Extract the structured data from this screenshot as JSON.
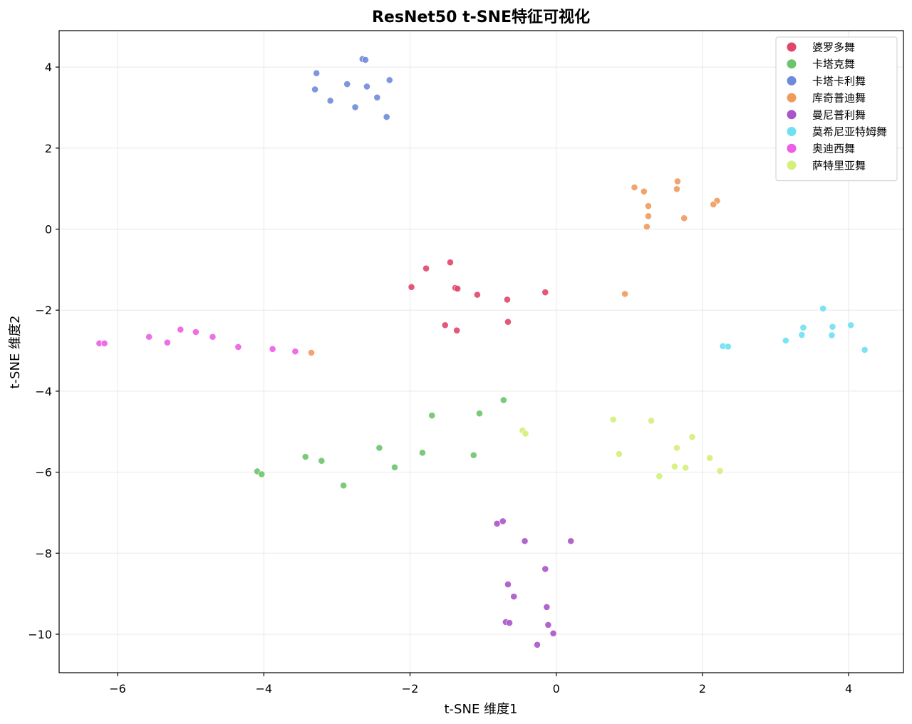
{
  "chart_data": {
    "type": "scatter",
    "title": "ResNet50 t-SNE特征可视化",
    "xlabel": "t-SNE 维度1",
    "ylabel": "t-SNE 维度2",
    "xlim": [
      -6.8,
      4.75
    ],
    "ylim": [
      -10.95,
      4.9
    ],
    "xticks": [
      -6,
      -4,
      -2,
      0,
      2,
      4
    ],
    "yticks": [
      4,
      2,
      0,
      -2,
      -4,
      -6,
      -8,
      -10
    ],
    "grid": true,
    "legend_position": "top-right",
    "series": [
      {
        "name": "婆罗多舞",
        "color": "#e0466a",
        "points": [
          [
            -1.45,
            -0.82
          ],
          [
            -1.78,
            -0.97
          ],
          [
            -1.98,
            -1.43
          ],
          [
            -1.38,
            -1.45
          ],
          [
            -1.35,
            -1.47
          ],
          [
            -1.08,
            -1.62
          ],
          [
            -0.67,
            -1.74
          ],
          [
            -0.15,
            -1.56
          ],
          [
            -1.52,
            -2.37
          ],
          [
            -1.36,
            -2.5
          ],
          [
            -0.66,
            -2.29
          ]
        ]
      },
      {
        "name": "卡塔克舞",
        "color": "#6cc46c",
        "points": [
          [
            -0.72,
            -4.22
          ],
          [
            -1.7,
            -4.6
          ],
          [
            -1.05,
            -4.55
          ],
          [
            -2.42,
            -5.4
          ],
          [
            -1.83,
            -5.52
          ],
          [
            -1.13,
            -5.58
          ],
          [
            -3.43,
            -5.62
          ],
          [
            -3.21,
            -5.72
          ],
          [
            -2.21,
            -5.88
          ],
          [
            -4.09,
            -5.98
          ],
          [
            -4.03,
            -6.05
          ],
          [
            -2.91,
            -6.33
          ]
        ]
      },
      {
        "name": "卡塔卡利舞",
        "color": "#7089dc",
        "points": [
          [
            -2.65,
            4.2
          ],
          [
            -2.61,
            4.18
          ],
          [
            -3.28,
            3.85
          ],
          [
            -2.28,
            3.68
          ],
          [
            -2.86,
            3.58
          ],
          [
            -2.59,
            3.52
          ],
          [
            -3.3,
            3.45
          ],
          [
            -2.45,
            3.25
          ],
          [
            -3.09,
            3.17
          ],
          [
            -2.75,
            3.01
          ],
          [
            -2.32,
            2.77
          ]
        ]
      },
      {
        "name": "库奇普迪舞",
        "color": "#f09a5c",
        "points": [
          [
            1.66,
            1.18
          ],
          [
            1.07,
            1.03
          ],
          [
            1.2,
            0.93
          ],
          [
            1.65,
            0.99
          ],
          [
            2.2,
            0.7
          ],
          [
            2.15,
            0.61
          ],
          [
            1.26,
            0.57
          ],
          [
            1.26,
            0.32
          ],
          [
            1.75,
            0.27
          ],
          [
            1.24,
            0.06
          ],
          [
            0.94,
            -1.6
          ],
          [
            -3.35,
            -3.05
          ]
        ]
      },
      {
        "name": "曼尼普利舞",
        "color": "#aa55c8",
        "points": [
          [
            -0.73,
            -7.21
          ],
          [
            -0.81,
            -7.27
          ],
          [
            -0.43,
            -7.7
          ],
          [
            0.2,
            -7.7
          ],
          [
            -0.15,
            -8.39
          ],
          [
            -0.66,
            -8.77
          ],
          [
            -0.58,
            -9.07
          ],
          [
            -0.13,
            -9.33
          ],
          [
            -0.69,
            -9.7
          ],
          [
            -0.64,
            -9.72
          ],
          [
            -0.11,
            -9.77
          ],
          [
            -0.04,
            -9.98
          ],
          [
            -0.26,
            -10.26
          ]
        ]
      },
      {
        "name": "莫希尼亚特姆舞",
        "color": "#6fdff2",
        "points": [
          [
            3.65,
            -1.96
          ],
          [
            4.03,
            -2.37
          ],
          [
            3.78,
            -2.41
          ],
          [
            3.38,
            -2.43
          ],
          [
            3.36,
            -2.61
          ],
          [
            3.77,
            -2.62
          ],
          [
            3.14,
            -2.75
          ],
          [
            2.28,
            -2.89
          ],
          [
            2.35,
            -2.9
          ],
          [
            4.22,
            -2.98
          ]
        ]
      },
      {
        "name": "奥迪西舞",
        "color": "#ec5ee6",
        "points": [
          [
            -5.14,
            -2.48
          ],
          [
            -4.93,
            -2.54
          ],
          [
            -5.57,
            -2.66
          ],
          [
            -4.7,
            -2.66
          ],
          [
            -5.32,
            -2.8
          ],
          [
            -6.25,
            -2.82
          ],
          [
            -6.18,
            -2.82
          ],
          [
            -4.35,
            -2.91
          ],
          [
            -3.88,
            -2.96
          ],
          [
            -3.57,
            -3.02
          ]
        ]
      },
      {
        "name": "萨特里亚舞",
        "color": "#d4ef7a",
        "points": [
          [
            -0.46,
            -4.97
          ],
          [
            -0.42,
            -5.05
          ],
          [
            0.78,
            -4.7
          ],
          [
            1.3,
            -4.73
          ],
          [
            1.86,
            -5.13
          ],
          [
            1.65,
            -5.4
          ],
          [
            0.86,
            -5.55
          ],
          [
            2.1,
            -5.65
          ],
          [
            1.62,
            -5.86
          ],
          [
            1.77,
            -5.89
          ],
          [
            2.24,
            -5.97
          ],
          [
            1.41,
            -6.1
          ]
        ]
      }
    ]
  }
}
